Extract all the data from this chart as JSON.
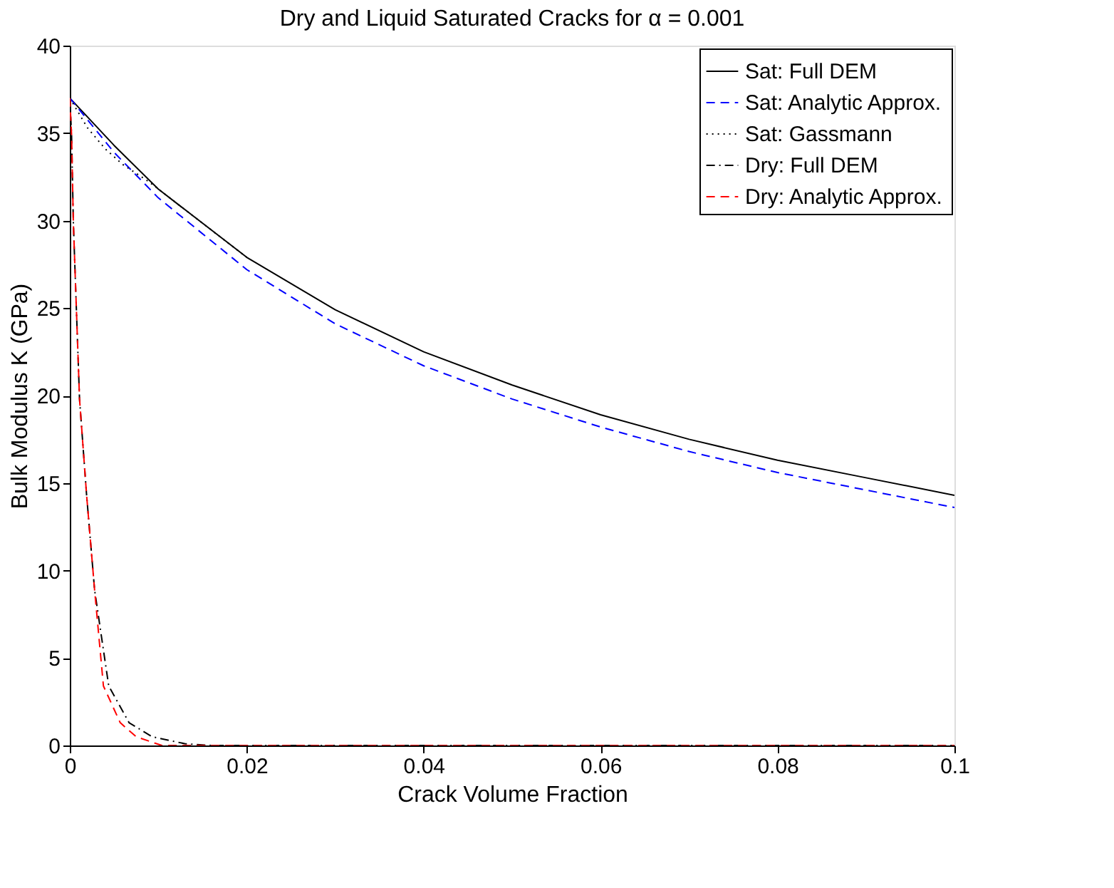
{
  "chart_data": {
    "type": "line",
    "title": "Dry and Liquid Saturated Cracks for α = 0.001",
    "xlabel": "Crack Volume Fraction",
    "ylabel": "Bulk Modulus K (GPa)",
    "xlim": [
      0,
      0.1
    ],
    "ylim": [
      0,
      40
    ],
    "xticks": [
      0,
      0.02,
      0.04,
      0.06,
      0.08,
      0.1
    ],
    "yticks": [
      0,
      5,
      10,
      15,
      20,
      25,
      30,
      35,
      40
    ],
    "grid": false,
    "legend": "top right",
    "series": [
      {
        "name": "Sat: Full DEM",
        "color": "#000000",
        "line_style": "solid",
        "x": [
          0,
          0.005,
          0.01,
          0.02,
          0.03,
          0.04,
          0.05,
          0.06,
          0.07,
          0.08,
          0.09,
          0.1
        ],
        "values": [
          37,
          34.3,
          31.8,
          27.9,
          24.9,
          22.5,
          20.6,
          18.9,
          17.5,
          16.3,
          15.3,
          14.3
        ]
      },
      {
        "name": "Sat: Analytic Approx.",
        "color": "#0000ff",
        "line_style": "dashed",
        "x": [
          0,
          0.005,
          0.01,
          0.02,
          0.03,
          0.04,
          0.05,
          0.06,
          0.07,
          0.08,
          0.09,
          0.1
        ],
        "values": [
          37,
          33.9,
          31.3,
          27.2,
          24.1,
          21.7,
          19.8,
          18.2,
          16.8,
          15.6,
          14.6,
          13.6
        ]
      },
      {
        "name": "Sat: Gassmann",
        "color": "#000000",
        "line_style": "dotted",
        "x": [
          0,
          0.002,
          0.004,
          0.006,
          0.009,
          0.01,
          0.02
        ],
        "values": [
          37,
          35.3,
          34.1,
          33.2,
          32.2,
          31.8,
          27.9
        ]
      },
      {
        "name": "Dry: Full DEM",
        "color": "#000000",
        "line_style": "dashdot",
        "x": [
          0,
          0.0002,
          0.0004,
          0.0011,
          0.0019,
          0.0028,
          0.0044,
          0.0067,
          0.0093,
          0.013,
          0.016,
          0.1
        ],
        "values": [
          37,
          34.9,
          29.9,
          19.8,
          14.3,
          8.9,
          3.4,
          1.3,
          0.5,
          0.1,
          0,
          0
        ]
      },
      {
        "name": "Dry: Analytic Approx.",
        "color": "#ff0000",
        "line_style": "dashed",
        "x": [
          0,
          0.0002,
          0.0004,
          0.0011,
          0.0019,
          0.0028,
          0.0038,
          0.0057,
          0.0075,
          0.0104,
          0.1
        ],
        "values": [
          37,
          34.9,
          29.9,
          19.8,
          14.3,
          8.9,
          3.4,
          1.3,
          0.5,
          0,
          0
        ]
      }
    ]
  }
}
